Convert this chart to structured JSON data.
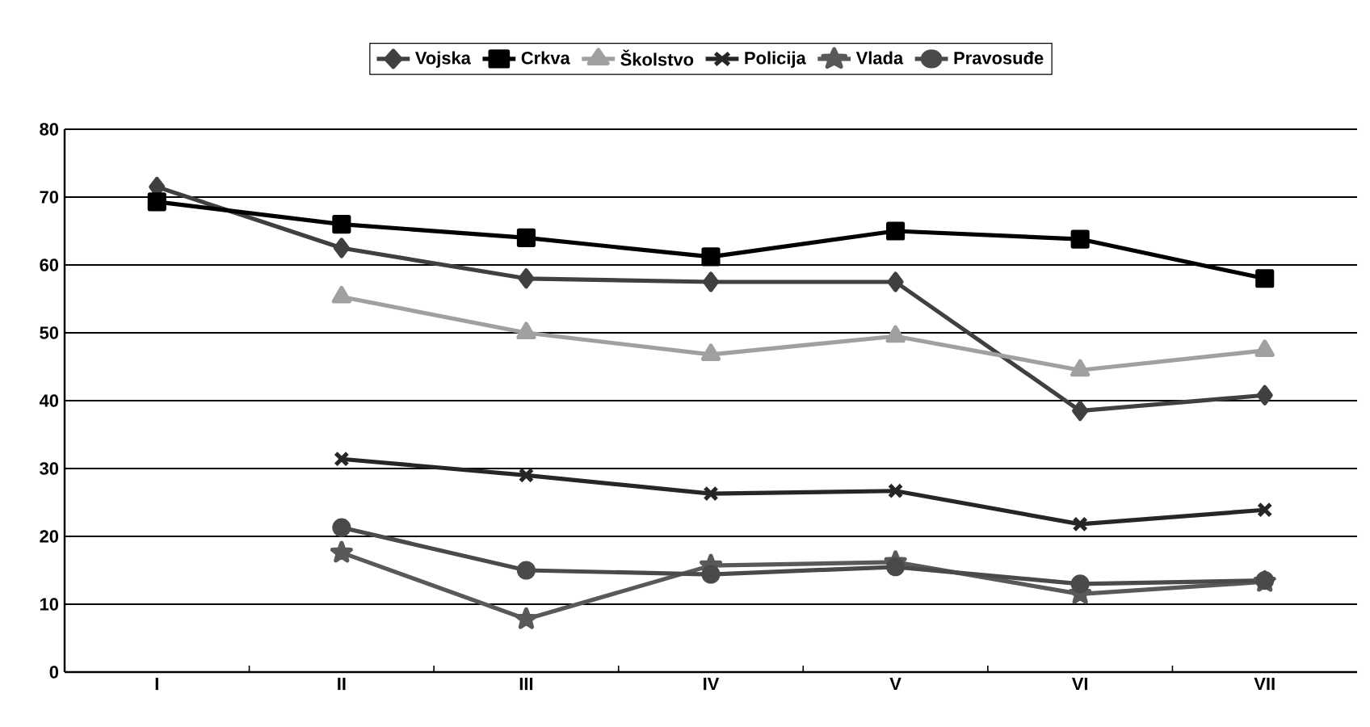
{
  "chart_data": {
    "type": "line",
    "categories": [
      "I",
      "II",
      "III",
      "IV",
      "V",
      "VI",
      "VII"
    ],
    "series": [
      {
        "name": "Vojska",
        "color": "#404040",
        "marker": "diamond",
        "values": [
          71.5,
          62.5,
          58,
          57.5,
          57.5,
          38.5,
          40.8
        ]
      },
      {
        "name": "Crkva",
        "color": "#000000",
        "marker": "square",
        "values": [
          69.3,
          66,
          64,
          61.2,
          65,
          63.8,
          58
        ]
      },
      {
        "name": "Školstvo",
        "color": "#a0a0a0",
        "marker": "triangle",
        "values": [
          null,
          55.3,
          50,
          46.8,
          49.5,
          44.5,
          47.4
        ]
      },
      {
        "name": "Policija",
        "color": "#262626",
        "marker": "cross",
        "values": [
          null,
          31.4,
          29,
          26.3,
          26.7,
          21.8,
          23.9
        ]
      },
      {
        "name": "Vlada",
        "color": "#595959",
        "marker": "star",
        "values": [
          null,
          17.6,
          7.8,
          15.7,
          16.2,
          11.5,
          13.3
        ]
      },
      {
        "name": "Pravosuđe",
        "color": "#4a4a4a",
        "marker": "circle",
        "values": [
          null,
          21.3,
          15,
          14.4,
          15.5,
          13,
          13.5
        ]
      }
    ],
    "ylim": [
      0,
      80
    ],
    "yticks": [
      0,
      10,
      20,
      30,
      40,
      50,
      60,
      70,
      80
    ],
    "grid": "y",
    "legend": "top",
    "line_style": "solid"
  }
}
